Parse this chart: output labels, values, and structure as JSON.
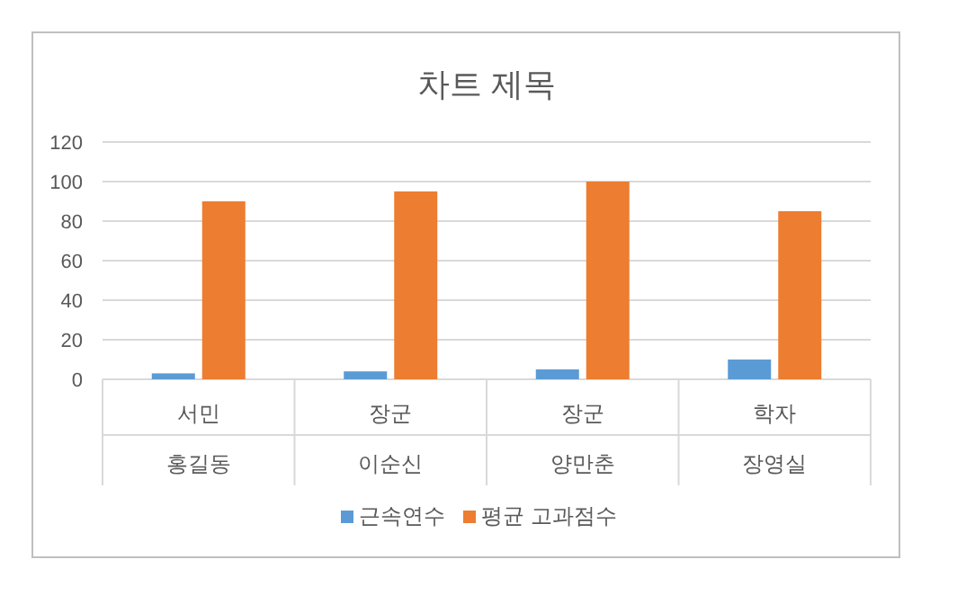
{
  "chart_data": {
    "type": "bar",
    "title": "차트 제목",
    "categories": [
      "서민\n홍길동",
      "장군\n이순신",
      "장군\n양만춘",
      "학자\n장영실"
    ],
    "series": [
      {
        "name": "근속연수",
        "color": "#5b9bd5",
        "values": [
          3,
          4,
          5,
          10
        ]
      },
      {
        "name": "평균 고과점수",
        "color": "#ed7d31",
        "values": [
          90,
          95,
          100,
          85
        ]
      }
    ],
    "ylim": [
      0,
      120
    ],
    "yticks": [
      0,
      20,
      40,
      60,
      80,
      100,
      120
    ],
    "grid": "y",
    "legend": "bottom"
  }
}
